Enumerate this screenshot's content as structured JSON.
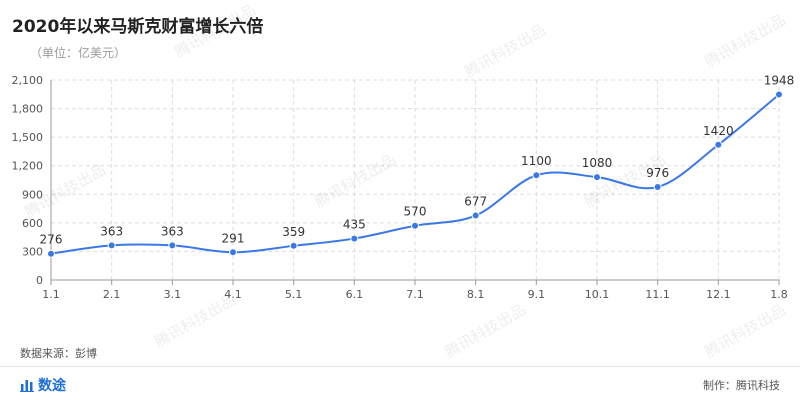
{
  "header": {
    "title": "2020年以来马斯克财富增长六倍",
    "unit": "（单位：亿美元）"
  },
  "footer": {
    "source": "数据来源：彭博",
    "brand": "数途",
    "maker": "制作：腾讯科技"
  },
  "watermark": "腾讯科技出品",
  "colors": {
    "line": "#3b78e7",
    "grid": "#dddddd",
    "axis": "#999999"
  },
  "chart_data": {
    "type": "line",
    "categories": [
      "1.1",
      "2.1",
      "3.1",
      "4.1",
      "5.1",
      "6.1",
      "7.1",
      "8.1",
      "9.1",
      "10.1",
      "11.1",
      "12.1",
      "1.8"
    ],
    "series": [
      {
        "values": [
          276,
          363,
          363,
          291,
          359,
          435,
          570,
          677,
          1100,
          1080,
          976,
          1420,
          1948
        ]
      }
    ],
    "yticks": [
      "0",
      "300",
      "600",
      "900",
      "1,200",
      "1,500",
      "1,800",
      "2,100"
    ],
    "ylim": [
      0,
      2100
    ],
    "grid": true,
    "smooth": true,
    "data_labels": true
  }
}
